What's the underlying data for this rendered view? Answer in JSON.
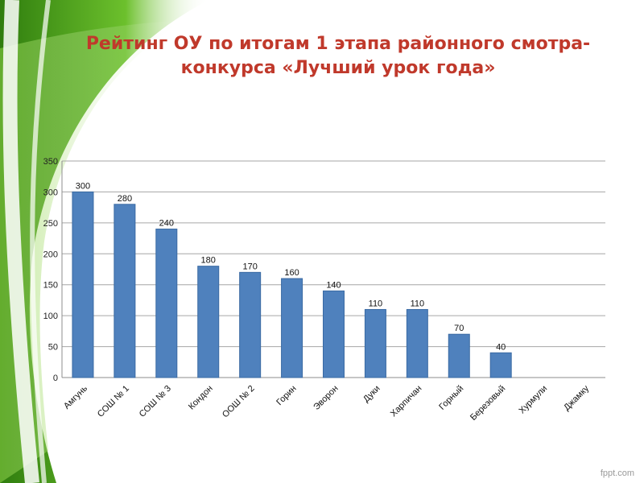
{
  "slide": {
    "title": "Рейтинг ОУ по итогам 1 этапа районного смотра-конкурса «Лучший урок года»",
    "credit": "fppt.com"
  },
  "colors": {
    "title": "#c0392b",
    "bar": "#4f81bd",
    "bar_edge": "#3a6aa3",
    "green_dark": "#3a8f14",
    "green_light": "#9bd84e"
  },
  "chart_data": {
    "type": "bar",
    "title": "",
    "xlabel": "",
    "ylabel": "",
    "categories": [
      "Амгунь",
      "СОШ № 1",
      "СОШ № 3",
      "Кондон",
      "ООШ № 2",
      "Горин",
      "Эворон",
      "Дуки",
      "Харпичан",
      "Горный",
      "Березовый",
      "Хурмули",
      "Джамку"
    ],
    "values": [
      300,
      280,
      240,
      180,
      170,
      160,
      140,
      110,
      110,
      70,
      40,
      0,
      0
    ],
    "value_labels": [
      "300",
      "280",
      "240",
      "180",
      "170",
      "160",
      "140",
      "110",
      "110",
      "70",
      "40",
      "",
      ""
    ],
    "ylim": [
      0,
      350
    ],
    "yticks": [
      0,
      50,
      100,
      150,
      200,
      250,
      300,
      350
    ],
    "grid": true,
    "legend": "none"
  }
}
